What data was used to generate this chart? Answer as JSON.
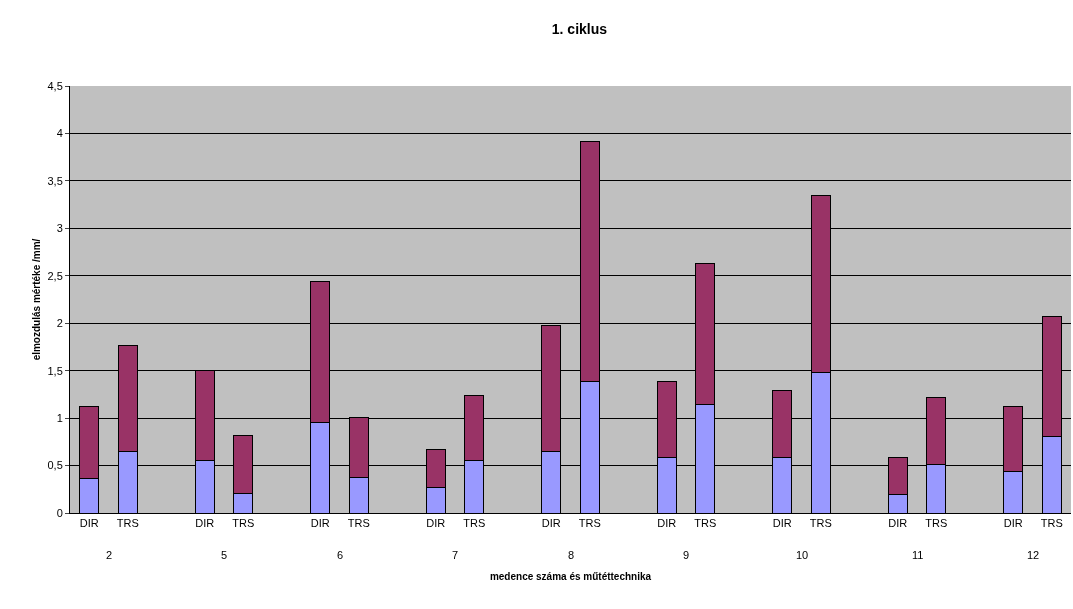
{
  "chart_data": {
    "type": "bar",
    "title": "1. ciklus",
    "xlabel": "medence száma és műtéttechnika",
    "ylabel": "elmozdulás mértéke /mm/",
    "categories": [
      "DIR",
      "TRS",
      null,
      "DIR",
      "TRS",
      null,
      "DIR",
      "TRS",
      null,
      "DIR",
      "TRS",
      null,
      "DIR",
      "TRS",
      null,
      "DIR",
      "TRS",
      null,
      "DIR",
      "TRS",
      null,
      "DIR",
      "TRS",
      null,
      "DIR",
      "TRS"
    ],
    "stacked": true,
    "series": [
      {
        "color": "#9999ff",
        "values": [
          0.36,
          0.65,
          null,
          0.55,
          0.21,
          null,
          0.95,
          0.37,
          null,
          0.27,
          0.55,
          null,
          0.65,
          1.39,
          null,
          0.58,
          1.14,
          null,
          0.58,
          1.48,
          null,
          0.19,
          0.51,
          null,
          0.44,
          0.81
        ]
      },
      {
        "color": "#993366",
        "values": [
          0.76,
          1.12,
          null,
          0.95,
          0.61,
          null,
          1.49,
          0.64,
          null,
          0.4,
          0.69,
          null,
          1.33,
          2.53,
          null,
          0.81,
          1.49,
          null,
          0.71,
          1.87,
          null,
          0.4,
          0.71,
          null,
          0.68,
          1.26
        ]
      }
    ],
    "annotations": [
      "2",
      "5",
      "6",
      "7",
      "8",
      "9",
      "10",
      "11",
      "12"
    ],
    "ylim": [
      0,
      4.5
    ],
    "yticks": [
      0,
      {
        "value": 0.5,
        "label": "0,5"
      },
      1,
      {
        "value": 1.5,
        "label": "1,5"
      },
      2,
      {
        "value": 2.5,
        "label": "2,5"
      },
      3,
      {
        "value": 3.5,
        "label": "3,5"
      },
      4,
      {
        "value": 4.5,
        "label": "4,5"
      }
    ],
    "grid": "y"
  }
}
